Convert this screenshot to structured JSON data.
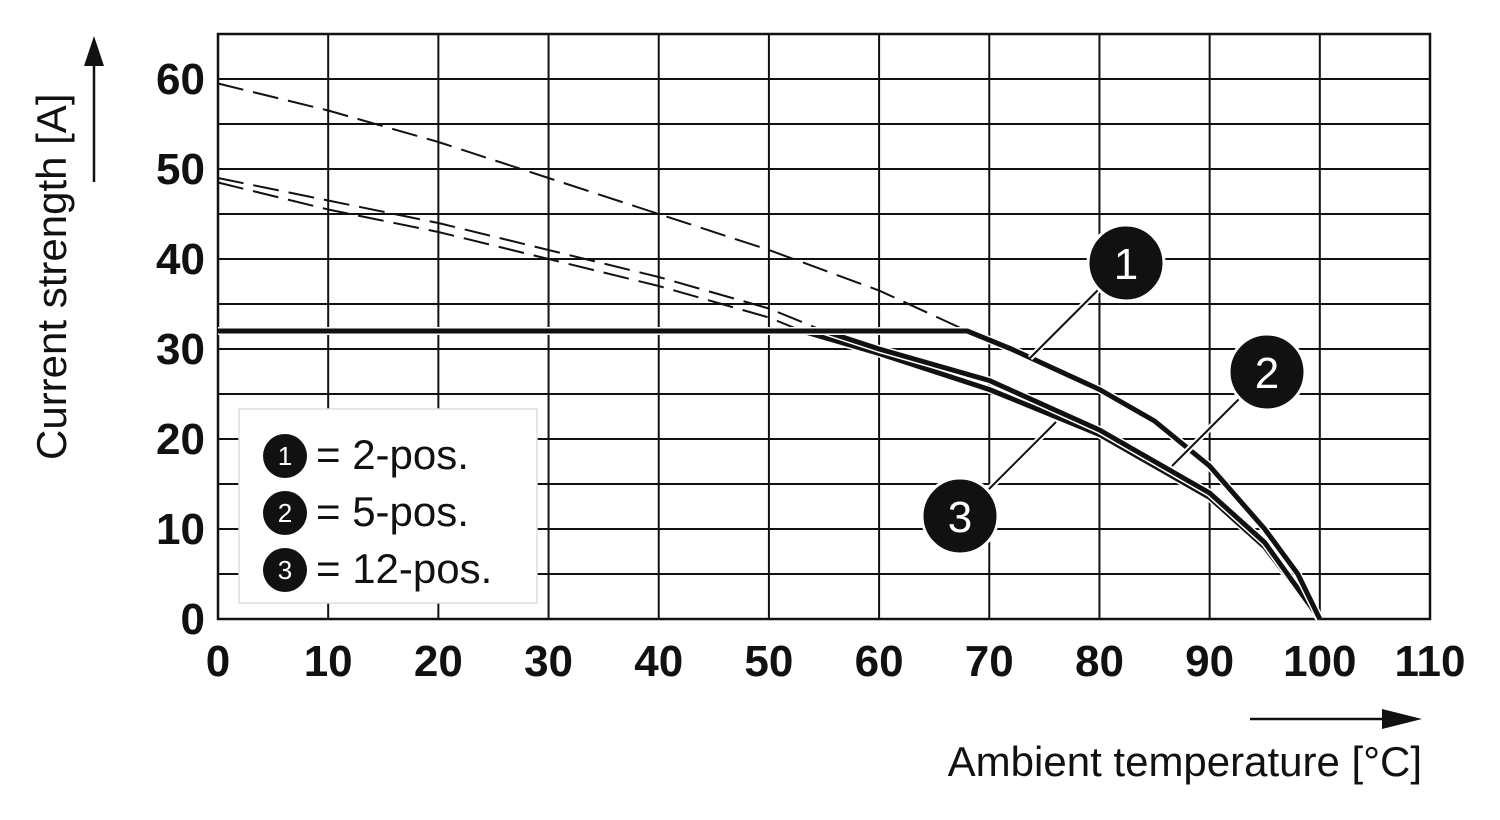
{
  "chart_data": {
    "type": "line",
    "xlabel": "Ambient temperature [°C]",
    "ylabel": "Current strength [A]",
    "xlim": [
      0,
      110
    ],
    "ylim": [
      0,
      65
    ],
    "x_ticks": [
      "0",
      "10",
      "20",
      "30",
      "40",
      "50",
      "60",
      "70",
      "80",
      "90",
      "100",
      "110"
    ],
    "y_ticks": [
      "0",
      "10",
      "20",
      "30",
      "40",
      "50",
      "60"
    ],
    "grid": true,
    "legend_position": "bottom-left",
    "legend": [
      {
        "num": "1",
        "label": "= 2-pos."
      },
      {
        "num": "2",
        "label": "= 5-pos."
      },
      {
        "num": "3",
        "label": "= 12-pos."
      }
    ],
    "callouts": [
      {
        "num": "1",
        "series": 0
      },
      {
        "num": "2",
        "series": 1
      },
      {
        "num": "3",
        "series": 2
      }
    ],
    "series": [
      {
        "id": "1",
        "derating": [
          [
            0,
            32
          ],
          [
            68,
            32
          ],
          [
            72,
            30
          ],
          [
            80,
            25.5
          ],
          [
            85,
            22
          ],
          [
            90,
            17
          ],
          [
            95,
            10
          ],
          [
            98,
            5
          ],
          [
            100,
            0
          ]
        ],
        "reference_dashed": [
          [
            0,
            59.5
          ],
          [
            10,
            56.5
          ],
          [
            20,
            53
          ],
          [
            30,
            49
          ],
          [
            40,
            45
          ],
          [
            50,
            41
          ],
          [
            60,
            36.5
          ],
          [
            68,
            32
          ]
        ]
      },
      {
        "id": "2",
        "derating": [
          [
            0,
            32
          ],
          [
            55,
            32
          ],
          [
            60,
            30
          ],
          [
            70,
            26.5
          ],
          [
            80,
            21
          ],
          [
            90,
            14
          ],
          [
            95,
            8.5
          ],
          [
            100,
            0
          ]
        ],
        "reference_dashed": [
          [
            0,
            49
          ],
          [
            10,
            46.5
          ],
          [
            20,
            44
          ],
          [
            30,
            41
          ],
          [
            40,
            38
          ],
          [
            50,
            34.5
          ],
          [
            55,
            32
          ]
        ]
      },
      {
        "id": "3",
        "derating": [
          [
            0,
            32
          ],
          [
            53,
            32
          ],
          [
            60,
            29.5
          ],
          [
            70,
            25.5
          ],
          [
            80,
            20.5
          ],
          [
            90,
            13.5
          ],
          [
            95,
            8
          ],
          [
            100,
            0
          ]
        ],
        "reference_dashed": [
          [
            0,
            48.5
          ],
          [
            10,
            45.5
          ],
          [
            20,
            43
          ],
          [
            30,
            40
          ],
          [
            40,
            37
          ],
          [
            50,
            33.5
          ],
          [
            53,
            32
          ]
        ]
      }
    ]
  }
}
